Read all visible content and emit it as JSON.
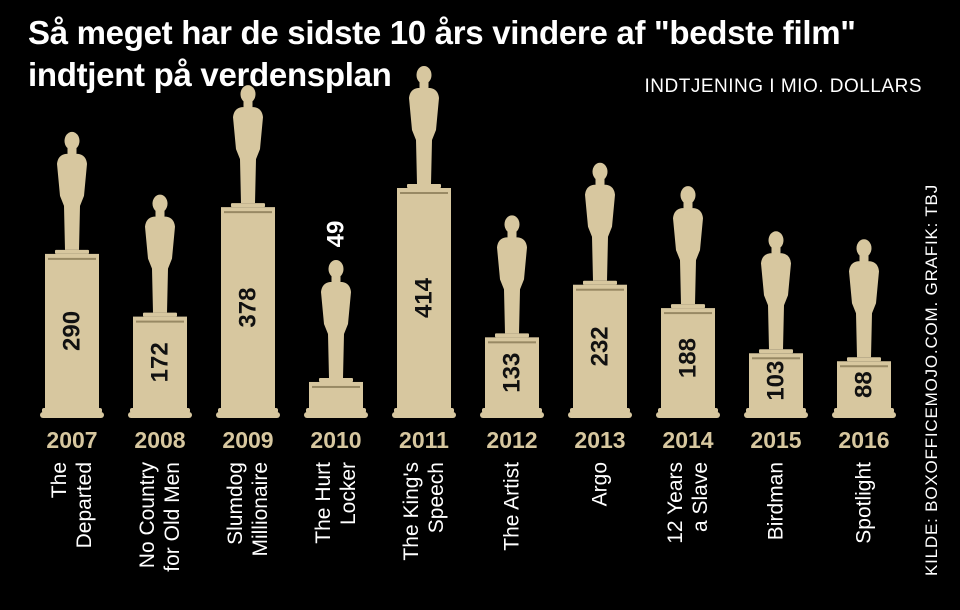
{
  "title_lines": [
    "Så meget har de sidste 10 års vindere af \"bedste film\"",
    "indtjent på verdensplan"
  ],
  "unit_label": "INDTJENING I MIO. DOLLARS",
  "source": "KILDE: BOXOFFICEMOJO.COM. GRAFIK: TBJ",
  "colors": {
    "background": "#000000",
    "statue": "#d7c79f",
    "year": "#d7c79f",
    "text": "#ffffff",
    "value_text": "#111111"
  },
  "chart_data": {
    "type": "bar",
    "ylabel": "INDTJENING I MIO. DOLLARS",
    "categories": [
      "2007",
      "2008",
      "2009",
      "2010",
      "2011",
      "2012",
      "2013",
      "2014",
      "2015",
      "2016"
    ],
    "values": [
      290,
      172,
      378,
      49,
      414,
      133,
      232,
      188,
      103,
      88
    ],
    "films": [
      [
        "The",
        "Departed"
      ],
      [
        "No Country",
        "for Old Men"
      ],
      [
        "Slumdog",
        "Millionaire"
      ],
      [
        "The Hurt",
        "Locker"
      ],
      [
        "The King's",
        "Speech"
      ],
      [
        "The Artist"
      ],
      [
        "Argo"
      ],
      [
        "12 Years",
        "a Slave"
      ],
      [
        "Birdman"
      ],
      [
        "Spotlight"
      ]
    ]
  }
}
